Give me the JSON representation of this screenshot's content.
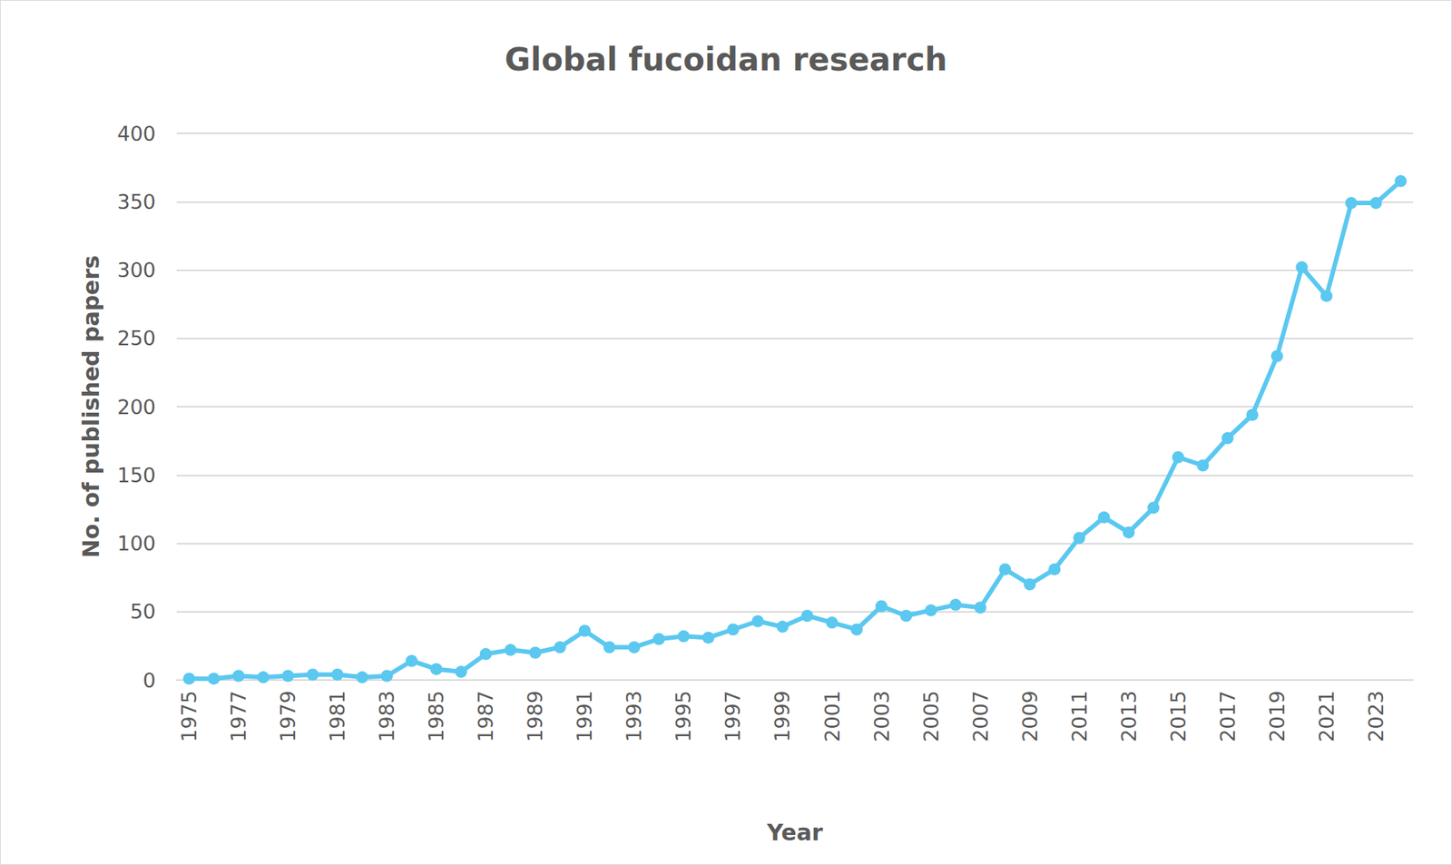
{
  "chart_data": {
    "type": "line",
    "title": "Global fucoidan research",
    "x_label": "Year",
    "y_label": "No. of published papers",
    "categories": [
      "1975",
      null,
      "1977",
      null,
      "1979",
      null,
      "1981",
      null,
      "1983",
      null,
      "1985",
      null,
      "1987",
      null,
      "1989",
      null,
      "1991",
      null,
      "1993",
      null,
      "1995",
      null,
      "1997",
      null,
      "1999",
      null,
      "2001",
      null,
      "2003",
      null,
      "2005",
      null,
      "2007",
      null,
      "2009",
      null,
      "2011",
      null,
      "2013",
      null,
      "2015",
      null,
      "2017",
      null,
      "2019",
      null,
      "2021",
      null,
      "2023",
      null
    ],
    "values": [
      1,
      1,
      3,
      2,
      3,
      4,
      4,
      2,
      3,
      14,
      8,
      6,
      19,
      22,
      20,
      24,
      36,
      24,
      24,
      30,
      32,
      31,
      37,
      43,
      39,
      47,
      42,
      37,
      54,
      47,
      51,
      55,
      53,
      81,
      70,
      81,
      104,
      119,
      108,
      126,
      163,
      157,
      177,
      194,
      237,
      302,
      281,
      349,
      349,
      365
    ],
    "color": "#5bc8f0",
    "marker": "circle",
    "line_style": "solid",
    "ylim": [
      0,
      400
    ],
    "yticks": [
      0,
      50,
      100,
      150,
      200,
      250,
      300,
      350,
      400
    ],
    "grid": true
  }
}
